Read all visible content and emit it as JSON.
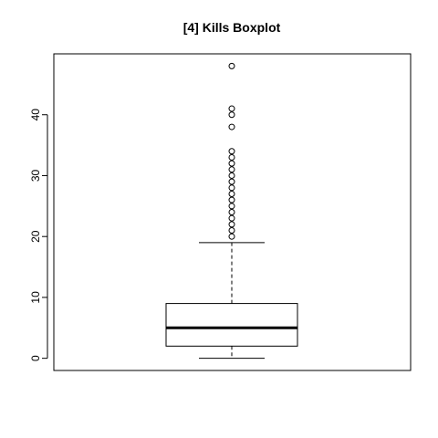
{
  "chart_data": {
    "type": "boxplot",
    "title": "[4] Kills Boxplot",
    "xlabel": "",
    "ylabel": "",
    "ylim": [
      -2,
      50
    ],
    "yticks": [
      0,
      10,
      20,
      30,
      40
    ],
    "grid": false,
    "stats": {
      "min": 0,
      "q1": 2,
      "median": 5,
      "q3": 9,
      "max": 19
    },
    "outliers": [
      20,
      21,
      22,
      23,
      24,
      25,
      26,
      27,
      28,
      29,
      30,
      31,
      32,
      33,
      34,
      38,
      40,
      41,
      48
    ]
  }
}
